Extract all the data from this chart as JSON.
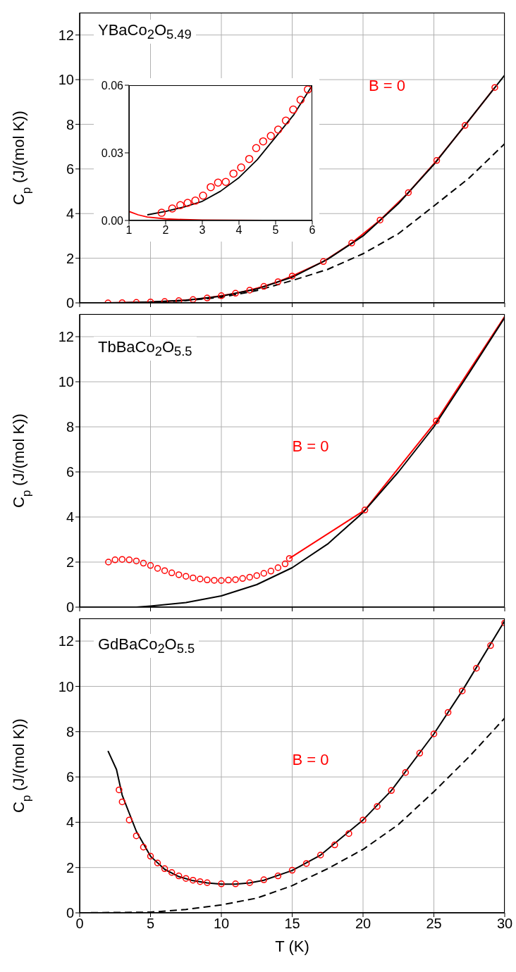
{
  "chart_data": [
    {
      "type": "line",
      "title": "YBaCo$_{2}$O$_{5.49}$",
      "ylabel": "C$_{p}$ (J/(mol K))",
      "annotations": [
        "B = 0"
      ],
      "xlim": [
        0,
        30
      ],
      "xticks": [
        0,
        5,
        10,
        15,
        20,
        25,
        30
      ],
      "ylim": [
        0,
        13
      ],
      "yticks": [
        0,
        2,
        4,
        6,
        8,
        10,
        12
      ],
      "grid": true,
      "tick_labels": "y",
      "series": [
        {
          "type": "line",
          "marker": "circle",
          "color": "#ff0000",
          "x": [
            2,
            3,
            4,
            5,
            6,
            7,
            8,
            9,
            10,
            11,
            12,
            13,
            14,
            15,
            17.2,
            19.2,
            21.2,
            23.2,
            25.2,
            27.2,
            29.3
          ],
          "values": [
            0,
            0.01,
            0.02,
            0.04,
            0.06,
            0.1,
            0.15,
            0.22,
            0.32,
            0.43,
            0.57,
            0.74,
            0.95,
            1.2,
            1.85,
            2.68,
            3.71,
            4.94,
            6.38,
            7.95,
            9.65
          ]
        },
        {
          "type": "line",
          "color": "#000000",
          "x": [
            1.5,
            3,
            5,
            7.5,
            10,
            12.5,
            15,
            17.5,
            20,
            22.5,
            25,
            27.5,
            30
          ],
          "values": [
            0,
            0.01,
            0.04,
            0.12,
            0.3,
            0.62,
            1.15,
            1.95,
            3.0,
            4.45,
            6.2,
            8.2,
            10.2
          ]
        },
        {
          "type": "line",
          "line_style": "dashed",
          "color": "#000000",
          "x": [
            5,
            7.5,
            10,
            12.5,
            15,
            17.5,
            20,
            22.5,
            25,
            27.5,
            30
          ],
          "values": [
            0.02,
            0.1,
            0.25,
            0.55,
            1.0,
            1.5,
            2.2,
            3.1,
            4.34,
            5.6,
            7.13
          ]
        }
      ]
    },
    {
      "type": "line",
      "xlim": [
        1,
        6
      ],
      "xticks": [
        1,
        2,
        3,
        4,
        5,
        6
      ],
      "ylim": [
        0,
        0.06
      ],
      "yticks": [
        {
          "value": 0,
          "label": "0.00"
        },
        {
          "value": 0.03,
          "label": "0.03"
        },
        {
          "value": 0.06,
          "label": "0.06"
        }
      ],
      "series": [
        {
          "type": "scatter",
          "marker": "circle",
          "color": "#ff0000",
          "x": [
            1.89,
            2.18,
            2.4,
            2.6,
            2.81,
            3.02,
            3.23,
            3.43,
            3.64,
            3.85,
            4.06,
            4.28,
            4.47,
            4.66,
            4.87,
            5.07,
            5.28,
            5.48,
            5.68,
            5.88
          ],
          "values": [
            0.0034,
            0.0053,
            0.0068,
            0.0078,
            0.0088,
            0.011,
            0.0148,
            0.0168,
            0.0171,
            0.0208,
            0.0235,
            0.0273,
            0.0321,
            0.0351,
            0.0375,
            0.0403,
            0.0443,
            0.0492,
            0.0535,
            0.0581
          ]
        },
        {
          "type": "line",
          "color": "#000000",
          "x": [
            1.5,
            2,
            2.5,
            3,
            3.5,
            4,
            4.5,
            5,
            5.5,
            6
          ],
          "values": [
            0.0025,
            0.004,
            0.006,
            0.0085,
            0.013,
            0.019,
            0.027,
            0.037,
            0.047,
            0.06
          ]
        },
        {
          "type": "line",
          "color": "#ff0000",
          "x": [
            1,
            1.25,
            1.5,
            2,
            2.5,
            3,
            4,
            4.7
          ],
          "values": [
            0.004,
            0.0025,
            0.0015,
            0.0007,
            0.0004,
            0.0002,
            null,
            0
          ]
        }
      ]
    },
    {
      "type": "line",
      "title": "TbBaCo$_{2}$O$_{5.5}$",
      "ylabel": "C$_{p}$ (J/(mol K))",
      "annotations": [
        "B = 0"
      ],
      "xlim": [
        0,
        30
      ],
      "xticks": [
        0,
        5,
        10,
        15,
        20,
        25,
        30
      ],
      "ylim": [
        0,
        13
      ],
      "yticks": [
        0,
        2,
        4,
        6,
        8,
        10,
        12
      ],
      "grid": true,
      "tick_labels": "y",
      "series": [
        {
          "type": "scatter",
          "marker": "circle",
          "color": "#ff0000",
          "x": [
            2.03,
            2.5,
            3,
            3.5,
            4,
            4.5,
            5,
            5.5,
            6,
            6.5,
            7,
            7.5,
            8,
            8.5,
            9,
            9.5,
            10,
            10.5,
            11,
            11.5,
            12,
            12.5,
            13,
            13.5,
            14,
            14.5,
            14.8,
            20.13,
            25.17
          ],
          "values": [
            2.0,
            2.1,
            2.12,
            2.1,
            2.05,
            1.95,
            1.85,
            1.72,
            1.62,
            1.52,
            1.44,
            1.37,
            1.3,
            1.25,
            1.21,
            1.19,
            1.18,
            1.2,
            1.22,
            1.27,
            1.33,
            1.4,
            1.5,
            1.6,
            1.75,
            1.92,
            2.16,
            4.31,
            8.26
          ]
        },
        {
          "type": "line",
          "color": "#ff0000",
          "x": [
            14.8,
            20.13,
            25.17,
            30
          ],
          "values": [
            2.16,
            4.31,
            8.26,
            12.9
          ]
        },
        {
          "type": "line",
          "color": "#000000",
          "x": [
            4,
            5,
            7.5,
            10,
            12.5,
            15,
            17.5,
            20,
            22.5,
            25,
            27.5,
            30
          ],
          "values": [
            0,
            0.05,
            0.2,
            0.5,
            1.0,
            1.75,
            2.8,
            4.2,
            6.0,
            8.0,
            10.4,
            12.85
          ]
        }
      ]
    },
    {
      "type": "line",
      "title": "GdBaCo$_{2}$O$_{5.5}$",
      "xlabel": "T (K)",
      "ylabel": "C$_{p}$ (J/(mol K))",
      "annotations": [
        "B = 0"
      ],
      "xlim": [
        0,
        30
      ],
      "xticks": [
        0,
        5,
        10,
        15,
        20,
        25,
        30
      ],
      "ylim": [
        0,
        13
      ],
      "yticks": [
        0,
        2,
        4,
        6,
        8,
        10,
        12
      ],
      "grid": true,
      "series": [
        {
          "type": "scatter",
          "marker": "circle",
          "color": "#ff0000",
          "x": [
            2.78,
            3,
            3.5,
            4,
            4.5,
            5,
            5.5,
            6,
            6.5,
            7,
            7.5,
            8,
            8.5,
            9,
            10,
            11,
            12,
            13,
            14,
            15,
            16,
            17,
            18,
            19,
            20,
            21,
            22,
            23,
            24,
            25,
            26,
            27,
            28,
            29,
            30
          ],
          "values": [
            5.43,
            4.9,
            4.1,
            3.4,
            2.9,
            2.5,
            2.2,
            1.95,
            1.78,
            1.63,
            1.52,
            1.44,
            1.38,
            1.33,
            1.28,
            1.28,
            1.33,
            1.46,
            1.63,
            1.88,
            2.18,
            2.55,
            3.0,
            3.5,
            4.1,
            4.7,
            5.4,
            6.2,
            7.05,
            7.9,
            8.85,
            9.8,
            10.8,
            11.8,
            12.8
          ]
        },
        {
          "type": "line",
          "color": "#000000",
          "x": [
            2,
            2.6,
            3,
            4,
            5,
            6,
            7,
            8,
            9,
            10,
            11,
            12,
            13,
            15,
            17,
            20,
            22,
            25,
            27,
            30
          ],
          "values": [
            7.15,
            6.33,
            5.2,
            3.6,
            2.5,
            1.92,
            1.6,
            1.42,
            1.32,
            1.27,
            1.27,
            1.32,
            1.44,
            1.87,
            2.55,
            4.1,
            5.4,
            7.9,
            9.8,
            12.9
          ]
        },
        {
          "type": "line",
          "line_style": "dashed",
          "color": "#000000",
          "x": [
            0,
            5,
            7.5,
            10,
            12.5,
            15,
            17.5,
            20,
            22.5,
            25,
            27.5,
            30
          ],
          "values": [
            0,
            0.03,
            0.15,
            0.35,
            0.65,
            1.2,
            1.95,
            2.8,
            3.9,
            5.35,
            6.9,
            8.6
          ]
        }
      ]
    }
  ]
}
